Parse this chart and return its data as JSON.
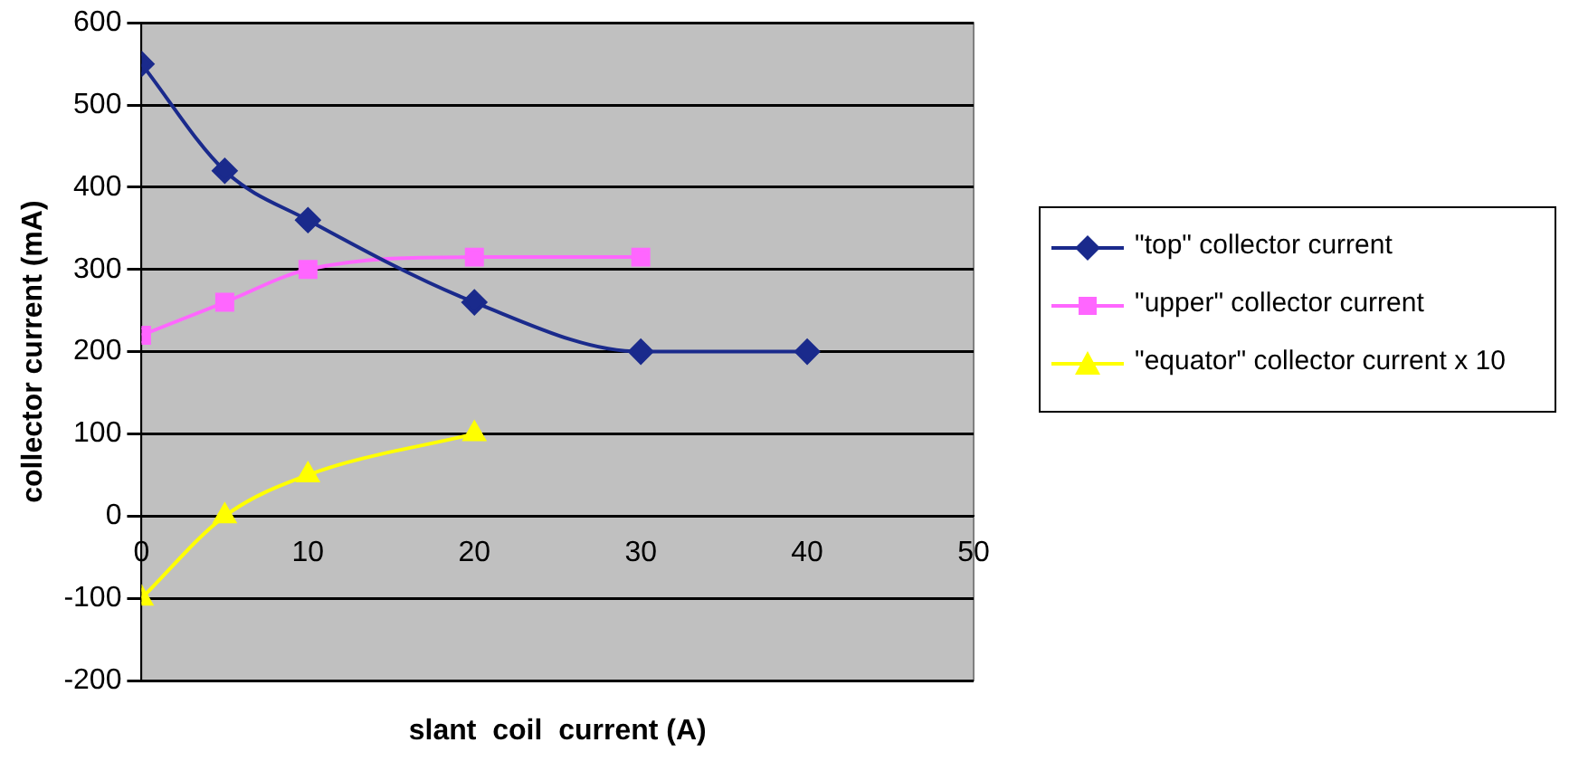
{
  "chart_data": {
    "type": "line",
    "xlabel": "slant  coil  current (A)",
    "ylabel": "collector current (mA)",
    "xlim": [
      0,
      50
    ],
    "xticks": [
      0,
      10,
      20,
      30,
      40,
      50
    ],
    "ylim": [
      -200,
      600
    ],
    "yticks": [
      -200,
      -100,
      0,
      100,
      200,
      300,
      400,
      500,
      600
    ],
    "grid": "y",
    "legend": "right",
    "line_style": "solid",
    "series": [
      {
        "name": "\"top\" collector current",
        "color": "#1a2a8c",
        "marker": "diamond",
        "x": [
          0,
          5,
          10,
          20,
          30,
          40
        ],
        "values": [
          550,
          420,
          360,
          260,
          200,
          200
        ]
      },
      {
        "name": "\"upper\" collector current",
        "color": "#ff66ff",
        "marker": "square",
        "x": [
          0,
          5,
          10,
          20,
          30
        ],
        "values": [
          220,
          260,
          300,
          315,
          315
        ]
      },
      {
        "name": "\"equator\" collector current x 10",
        "color": "#ffff00",
        "marker": "triangle",
        "x": [
          0,
          5,
          10,
          20
        ],
        "values": [
          -100,
          0,
          50,
          100
        ]
      }
    ]
  }
}
